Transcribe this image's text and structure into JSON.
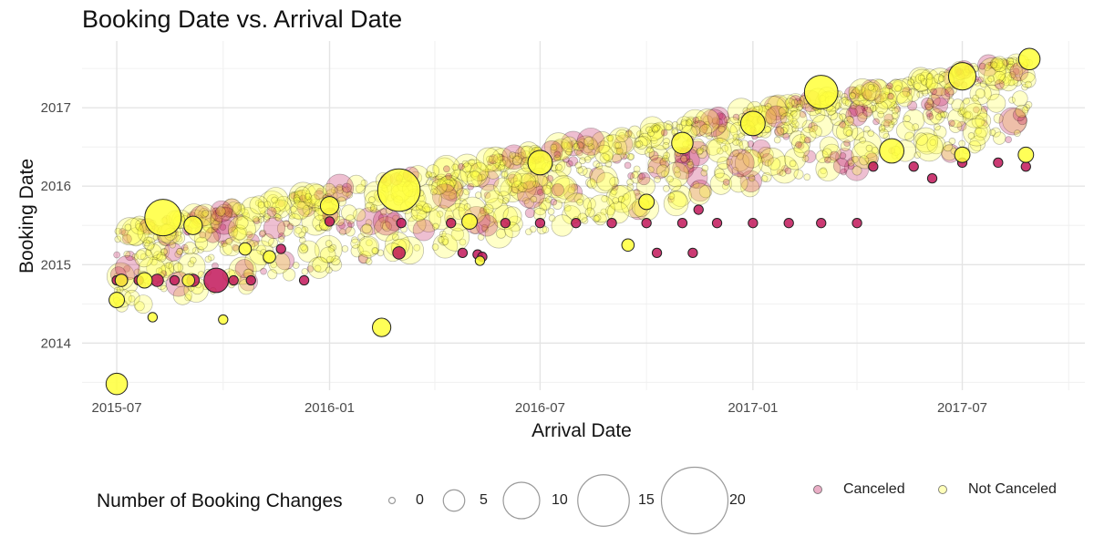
{
  "chart_data": {
    "type": "scatter",
    "title": "Booking Date vs. Arrival Date",
    "xlabel": "Arrival Date",
    "ylabel": "Booking Date",
    "x_ticks": [
      "2015-07",
      "2016-01",
      "2016-07",
      "2017-01",
      "2017-07"
    ],
    "y_ticks": [
      "2014",
      "2015",
      "2016",
      "2017"
    ],
    "xlim": [
      "2015-06-01",
      "2017-10-15"
    ],
    "ylim": [
      2013.4,
      2017.85
    ],
    "grid": true,
    "size_legend": {
      "title": "Number of Booking Changes",
      "values": [
        0,
        5,
        10,
        15,
        20
      ]
    },
    "color_legend": {
      "placement": "bottom-right",
      "entries": [
        {
          "name": "Canceled",
          "color": "#c2185b"
        },
        {
          "name": "Not Canceled",
          "color": "#ffff3a"
        }
      ]
    },
    "series": [
      {
        "name": "Canceled",
        "color": "#c2185b",
        "points": [
          {
            "x": "2015-07-01",
            "y": 2014.8,
            "size": 1
          },
          {
            "x": "2015-07-05",
            "y": 2014.8,
            "size": 2
          },
          {
            "x": "2015-07-20",
            "y": 2014.8,
            "size": 1
          },
          {
            "x": "2015-08-05",
            "y": 2014.8,
            "size": 2
          },
          {
            "x": "2015-08-20",
            "y": 2014.8,
            "size": 1
          },
          {
            "x": "2015-09-05",
            "y": 2014.8,
            "size": 2
          },
          {
            "x": "2015-09-25",
            "y": 2014.8,
            "size": 6
          },
          {
            "x": "2015-10-10",
            "y": 2014.8,
            "size": 1
          },
          {
            "x": "2015-10-25",
            "y": 2014.8,
            "size": 1
          },
          {
            "x": "2015-11-20",
            "y": 2015.2,
            "size": 1
          },
          {
            "x": "2015-12-10",
            "y": 2014.8,
            "size": 1
          },
          {
            "x": "2016-01-01",
            "y": 2015.55,
            "size": 1
          },
          {
            "x": "2016-03-01",
            "y": 2015.15,
            "size": 2
          },
          {
            "x": "2016-03-03",
            "y": 2015.53,
            "size": 1
          },
          {
            "x": "2016-04-15",
            "y": 2015.53,
            "size": 1
          },
          {
            "x": "2016-04-25",
            "y": 2015.15,
            "size": 1
          },
          {
            "x": "2016-05-08",
            "y": 2015.13,
            "size": 1
          },
          {
            "x": "2016-05-12",
            "y": 2015.1,
            "size": 1
          },
          {
            "x": "2016-06-01",
            "y": 2015.53,
            "size": 1
          },
          {
            "x": "2016-07-01",
            "y": 2015.53,
            "size": 1
          },
          {
            "x": "2016-08-01",
            "y": 2015.53,
            "size": 1
          },
          {
            "x": "2016-09-01",
            "y": 2015.53,
            "size": 1
          },
          {
            "x": "2016-10-01",
            "y": 2015.53,
            "size": 1
          },
          {
            "x": "2016-10-10",
            "y": 2015.15,
            "size": 1
          },
          {
            "x": "2016-11-01",
            "y": 2015.53,
            "size": 1
          },
          {
            "x": "2016-11-10",
            "y": 2015.15,
            "size": 1
          },
          {
            "x": "2016-11-15",
            "y": 2015.7,
            "size": 1
          },
          {
            "x": "2016-12-01",
            "y": 2015.53,
            "size": 1
          },
          {
            "x": "2017-01-01",
            "y": 2015.53,
            "size": 1
          },
          {
            "x": "2017-02-01",
            "y": 2015.53,
            "size": 1
          },
          {
            "x": "2017-03-01",
            "y": 2015.53,
            "size": 1
          },
          {
            "x": "2017-04-01",
            "y": 2015.53,
            "size": 1
          },
          {
            "x": "2017-04-15",
            "y": 2016.25,
            "size": 1
          },
          {
            "x": "2017-05-20",
            "y": 2016.25,
            "size": 1
          },
          {
            "x": "2017-06-05",
            "y": 2016.1,
            "size": 1
          },
          {
            "x": "2017-07-01",
            "y": 2016.3,
            "size": 1
          },
          {
            "x": "2017-08-01",
            "y": 2016.3,
            "size": 1
          },
          {
            "x": "2017-08-25",
            "y": 2016.25,
            "size": 1
          }
        ]
      },
      {
        "name": "Not Canceled",
        "color": "#ffff3a",
        "points": [
          {
            "x": "2015-07-01",
            "y": 2013.48,
            "size": 5
          },
          {
            "x": "2015-07-01",
            "y": 2014.55,
            "size": 3
          },
          {
            "x": "2015-07-05",
            "y": 2014.8,
            "size": 2
          },
          {
            "x": "2015-07-25",
            "y": 2014.8,
            "size": 3
          },
          {
            "x": "2015-08-01",
            "y": 2014.33,
            "size": 1
          },
          {
            "x": "2015-08-10",
            "y": 2015.6,
            "size": 10
          },
          {
            "x": "2015-09-01",
            "y": 2014.8,
            "size": 2
          },
          {
            "x": "2015-09-05",
            "y": 2015.5,
            "size": 4
          },
          {
            "x": "2015-10-01",
            "y": 2014.3,
            "size": 1
          },
          {
            "x": "2015-10-20",
            "y": 2015.2,
            "size": 2
          },
          {
            "x": "2015-11-10",
            "y": 2015.1,
            "size": 2
          },
          {
            "x": "2016-01-01",
            "y": 2015.75,
            "size": 4
          },
          {
            "x": "2016-02-15",
            "y": 2014.2,
            "size": 4
          },
          {
            "x": "2016-03-01",
            "y": 2015.95,
            "size": 12
          },
          {
            "x": "2016-05-01",
            "y": 2015.55,
            "size": 3
          },
          {
            "x": "2016-05-10",
            "y": 2015.05,
            "size": 1
          },
          {
            "x": "2016-07-01",
            "y": 2016.3,
            "size": 6
          },
          {
            "x": "2016-09-15",
            "y": 2015.25,
            "size": 2
          },
          {
            "x": "2016-10-01",
            "y": 2015.8,
            "size": 3
          },
          {
            "x": "2016-11-01",
            "y": 2016.55,
            "size": 5
          },
          {
            "x": "2017-01-01",
            "y": 2016.8,
            "size": 6
          },
          {
            "x": "2017-03-01",
            "y": 2017.2,
            "size": 9
          },
          {
            "x": "2017-05-01",
            "y": 2016.45,
            "size": 6
          },
          {
            "x": "2017-07-01",
            "y": 2016.4,
            "size": 3
          },
          {
            "x": "2017-07-01",
            "y": 2017.4,
            "size": 7
          },
          {
            "x": "2017-08-25",
            "y": 2016.4,
            "size": 3
          },
          {
            "x": "2017-08-28",
            "y": 2017.62,
            "size": 5
          }
        ]
      }
    ]
  }
}
